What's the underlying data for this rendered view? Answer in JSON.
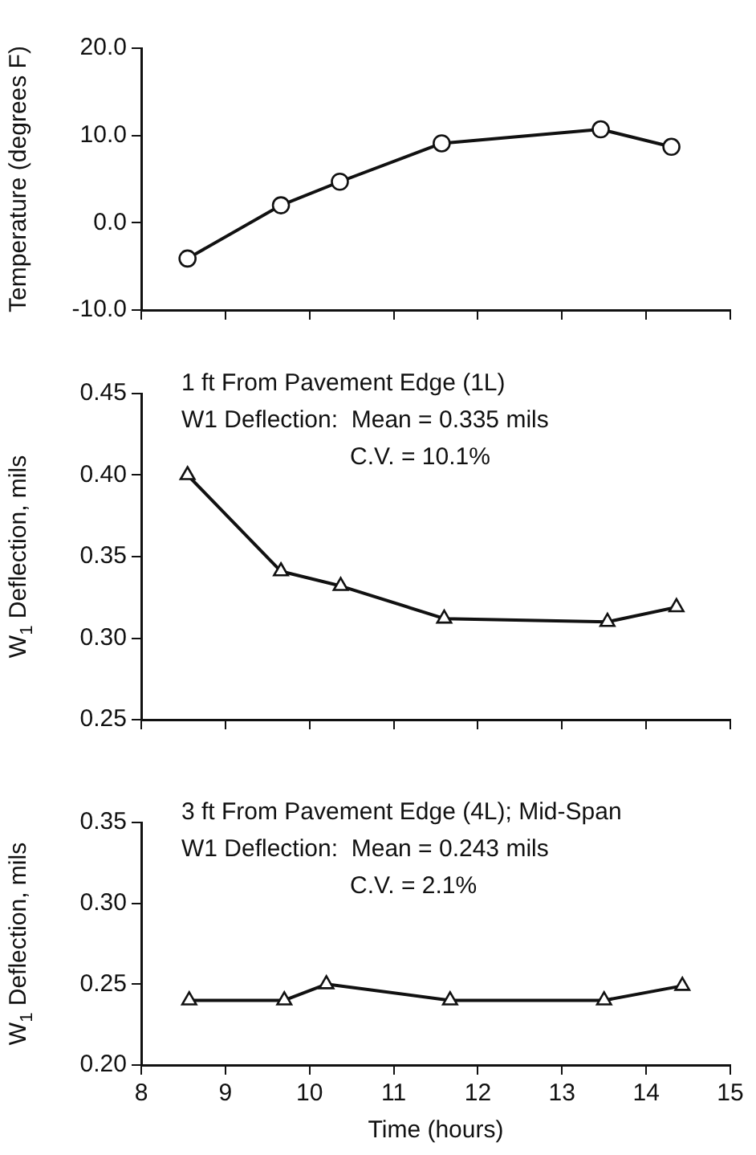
{
  "chart_data": [
    {
      "type": "line",
      "ylabel": "Temperature (degrees F)",
      "x": [
        8.55,
        9.66,
        10.36,
        11.57,
        13.46,
        14.3
      ],
      "series": [
        {
          "color": "#111111",
          "values": [
            -4.1,
            2.0,
            4.7,
            9.1,
            10.7,
            8.7
          ]
        }
      ],
      "xlim": [
        8,
        15
      ],
      "xticks": [
        8,
        9,
        10,
        11,
        12,
        13,
        14,
        15
      ],
      "ylim": [
        -10,
        20
      ],
      "yticks": [
        {
          "value": -10,
          "label": "-10.0"
        },
        {
          "value": 0,
          "label": "0.0"
        },
        {
          "value": 10,
          "label": "10.0"
        },
        {
          "value": 20,
          "label": "20.0"
        }
      ],
      "tick_labels": "y",
      "grid": false,
      "legend": false,
      "marker": "circle",
      "line_style": "solid"
    },
    {
      "type": "line",
      "ylabel": "W$_{1}$ Deflection, mils",
      "x": [
        8.55,
        9.66,
        10.37,
        11.6,
        13.54,
        14.36
      ],
      "series": [
        {
          "color": "#111111",
          "values": [
            0.4,
            0.341,
            0.332,
            0.312,
            0.31,
            0.319
          ]
        }
      ],
      "xlim": [
        8,
        15
      ],
      "xticks": [
        8,
        9,
        10,
        11,
        12,
        13,
        14,
        15
      ],
      "ylim": [
        0.25,
        0.45
      ],
      "yticks": [
        {
          "value": 0.25,
          "label": "0.25"
        },
        {
          "value": 0.3,
          "label": "0.30"
        },
        {
          "value": 0.35,
          "label": "0.35"
        },
        {
          "value": 0.4,
          "label": "0.40"
        },
        {
          "value": 0.45,
          "label": "0.45"
        }
      ],
      "annotations": [
        "1 ft From Pavement Edge (1L)",
        "W1 Deflection:  Mean = 0.335 mils",
        "C.V. = 10.1%"
      ],
      "tick_labels": "y",
      "grid": false,
      "legend": false,
      "marker": "triangle",
      "line_style": "solid"
    },
    {
      "type": "line",
      "xlabel": "Time (hours)",
      "ylabel": "W$_{1}$ Deflection, mils",
      "x": [
        8.57,
        9.7,
        10.2,
        11.67,
        13.5,
        14.43
      ],
      "series": [
        {
          "color": "#111111",
          "values": [
            0.24,
            0.24,
            0.25,
            0.24,
            0.24,
            0.249
          ]
        }
      ],
      "xlim": [
        8,
        15
      ],
      "xticks": [
        8,
        9,
        10,
        11,
        12,
        13,
        14,
        15
      ],
      "ylim": [
        0.2,
        0.35
      ],
      "yticks": [
        {
          "value": 0.2,
          "label": "0.20"
        },
        {
          "value": 0.25,
          "label": "0.25"
        },
        {
          "value": 0.3,
          "label": "0.30"
        },
        {
          "value": 0.35,
          "label": "0.35"
        }
      ],
      "annotations": [
        "3 ft From Pavement Edge (4L); Mid-Span",
        "W1 Deflection:  Mean = 0.243 mils",
        "C.V. = 2.1%"
      ],
      "grid": false,
      "legend": false,
      "marker": "triangle",
      "line_style": "solid"
    }
  ]
}
